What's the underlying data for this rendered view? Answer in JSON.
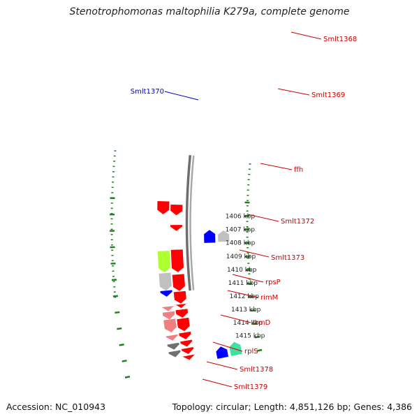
{
  "title": "Stenotrophomonas maltophilia K279a, complete genome",
  "footer": {
    "accession": "Accession: NC_010943",
    "summary": "Topology: circular; Length: 4,851,126 bp; Genes: 4,386"
  },
  "ticks": [
    "1406 kbp",
    "1407 kbp",
    "1408 kbp",
    "1409 kbp",
    "1410 kbp",
    "1411 kbp",
    "1412 kbp",
    "1413 kbp",
    "1414 kbp",
    "1415 kbp"
  ],
  "gene_labels": [
    {
      "name": "Smlt1368",
      "strand": "forward",
      "color": "#d00000"
    },
    {
      "name": "Smlt1369",
      "strand": "forward",
      "color": "#d00000"
    },
    {
      "name": "Smlt1370",
      "strand": "reverse",
      "color": "#0000c8"
    },
    {
      "name": "ffh",
      "strand": "forward",
      "color": "#d00000"
    },
    {
      "name": "Smlt1372",
      "strand": "forward",
      "color": "#d00000"
    },
    {
      "name": "Smlt1373",
      "strand": "forward",
      "color": "#d00000"
    },
    {
      "name": "rpsP",
      "strand": "forward",
      "color": "#d00000"
    },
    {
      "name": "rimM",
      "strand": "forward",
      "color": "#d00000"
    },
    {
      "name": "trmD",
      "strand": "forward",
      "color": "#d00000"
    },
    {
      "name": "rplS",
      "strand": "forward",
      "color": "#d00000"
    },
    {
      "name": "Smlt1378",
      "strand": "forward",
      "color": "#d00000"
    },
    {
      "name": "Smlt1379",
      "strand": "forward",
      "color": "#d00000"
    }
  ],
  "colors": {
    "backbone": "#808080",
    "tick_mark": "#208020",
    "cds": "#ff0000",
    "light_cds": "#f08080",
    "blue_cds": "#0000ff",
    "steel_cds": "#4682b4",
    "gray_cds": "#c0c0c0",
    "dark_gray_cds": "#707070",
    "green_cds": "#adff2f",
    "aqua_cds": "#40e0a0"
  }
}
